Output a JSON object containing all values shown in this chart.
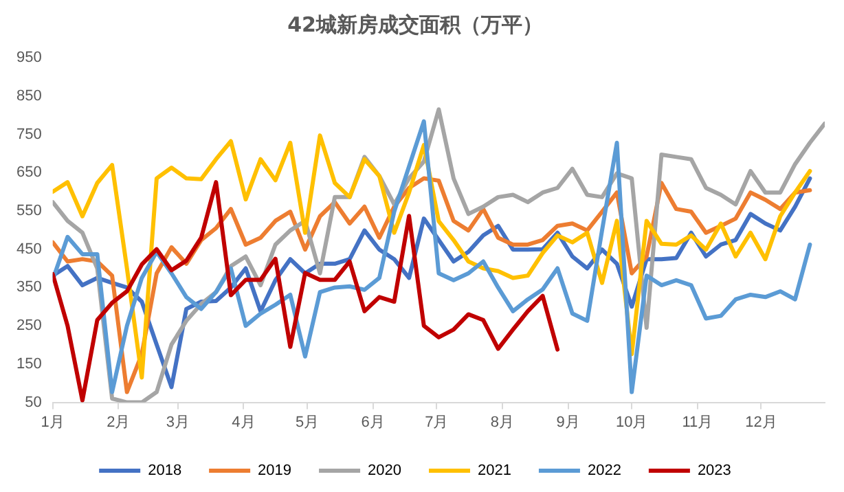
{
  "chart_data": {
    "type": "line",
    "title": "42城新房成交面积（万平）",
    "legend": "bottom",
    "grid": false,
    "marker": "none",
    "line_style": "solid",
    "x": [
      "--01-01",
      "--01-08",
      "--01-15",
      "--01-22",
      "--01-29",
      "--02-05",
      "--02-12",
      "--02-19",
      "--02-26",
      "--03-05",
      "--03-12",
      "--03-19",
      "--03-26",
      "--04-02",
      "--04-09",
      "--04-16",
      "--04-23",
      "--04-30",
      "--05-07",
      "--05-14",
      "--05-21",
      "--05-28",
      "--06-04",
      "--06-11",
      "--06-18",
      "--06-25",
      "--07-02",
      "--07-09",
      "--07-16",
      "--07-23",
      "--07-30",
      "--08-06",
      "--08-13",
      "--08-20",
      "--08-27",
      "--09-03",
      "--09-10",
      "--09-17",
      "--09-24",
      "--10-01",
      "--10-08",
      "--10-15",
      "--10-22",
      "--10-29",
      "--11-05",
      "--11-12",
      "--11-19",
      "--11-26",
      "--12-03",
      "--12-10",
      "--12-17",
      "--12-24",
      "--12-31"
    ],
    "xlim": [
      "--01-01",
      "--12-31"
    ],
    "xticks": [
      {
        "value": "--01-01",
        "label": "1月"
      },
      {
        "value": "--02-01",
        "label": "2月"
      },
      {
        "value": "--03-01",
        "label": "3月"
      },
      {
        "value": "--04-01",
        "label": "4月"
      },
      {
        "value": "--05-01",
        "label": "5月"
      },
      {
        "value": "--06-01",
        "label": "6月"
      },
      {
        "value": "--07-01",
        "label": "7月"
      },
      {
        "value": "--08-01",
        "label": "8月"
      },
      {
        "value": "--09-01",
        "label": "9月"
      },
      {
        "value": "--10-01",
        "label": "10月"
      },
      {
        "value": "--11-01",
        "label": "11月"
      },
      {
        "value": "--12-01",
        "label": "12月"
      }
    ],
    "ylim": [
      50,
      950
    ],
    "yticks": [
      50,
      150,
      250,
      350,
      450,
      550,
      650,
      750,
      850,
      950
    ],
    "series": [
      {
        "name": "2018",
        "color": "#4472c4",
        "values": [
          381,
          406,
          356,
          375,
          362,
          350,
          313,
          201,
          90,
          294,
          313,
          315,
          350,
          400,
          288,
          369,
          424,
          387,
          412,
          412,
          424,
          499,
          449,
          424,
          375,
          530,
          474,
          418,
          443,
          486,
          511,
          449,
          449,
          450,
          493,
          431,
          400,
          449,
          412,
          300,
          424,
          424,
          427,
          493,
          431,
          462,
          474,
          542,
          517,
          499,
          561,
          635,
          null
        ]
      },
      {
        "name": "2019",
        "color": "#ed7d31",
        "values": [
          468,
          418,
          424,
          418,
          381,
          77,
          176,
          387,
          455,
          412,
          474,
          505,
          555,
          462,
          480,
          524,
          548,
          449,
          536,
          573,
          517,
          561,
          480,
          561,
          610,
          635,
          629,
          524,
          499,
          555,
          480,
          462,
          462,
          474,
          511,
          517,
          499,
          548,
          598,
          387,
          431,
          623,
          555,
          548,
          493,
          511,
          530,
          598,
          579,
          555,
          598,
          604,
          null
        ]
      },
      {
        "name": "2020",
        "color": "#a5a5a5",
        "values": [
          573,
          524,
          493,
          400,
          60,
          50,
          50,
          77,
          201,
          263,
          307,
          338,
          406,
          431,
          356,
          462,
          499,
          524,
          387,
          586,
          586,
          691,
          641,
          567,
          635,
          679,
          815,
          635,
          542,
          561,
          586,
          592,
          573,
          598,
          610,
          660,
          592,
          586,
          648,
          635,
          245,
          697,
          691,
          685,
          610,
          592,
          567,
          654,
          598,
          598,
          672,
          728,
          778
        ]
      },
      {
        "name": "2021",
        "color": "#ffc000",
        "values": [
          600,
          625,
          536,
          623,
          670,
          400,
          115,
          635,
          663,
          635,
          633,
          685,
          732,
          580,
          685,
          630,
          728,
          493,
          747,
          623,
          586,
          685,
          641,
          493,
          598,
          722,
          523,
          474,
          418,
          400,
          393,
          375,
          381,
          440,
          486,
          468,
          493,
          362,
          524,
          176,
          524,
          464,
          462,
          486,
          449,
          517,
          431,
          493,
          424,
          536,
          598,
          654,
          null
        ]
      },
      {
        "name": "2022",
        "color": "#5b9bd5",
        "values": [
          370,
          482,
          437,
          437,
          77,
          250,
          375,
          443,
          387,
          325,
          294,
          338,
          400,
          250,
          282,
          305,
          331,
          170,
          338,
          350,
          353,
          344,
          375,
          548,
          666,
          784,
          387,
          369,
          387,
          418,
          350,
          288,
          319,
          345,
          400,
          282,
          263,
          499,
          728,
          77,
          381,
          356,
          369,
          356,
          269,
          276,
          319,
          331,
          325,
          340,
          319,
          462,
          null
        ]
      },
      {
        "name": "2023",
        "color": "#c00000",
        "values": [
          385,
          250,
          55,
          265,
          310,
          340,
          410,
          450,
          395,
          420,
          480,
          625,
          330,
          370,
          370,
          425,
          195,
          388,
          370,
          370,
          418,
          288,
          325,
          313,
          537,
          250,
          220,
          240,
          280,
          265,
          190,
          240,
          288,
          328,
          188,
          null,
          null,
          null,
          null,
          null,
          null,
          null,
          null,
          null,
          null,
          null,
          null,
          null,
          null,
          null,
          null,
          null,
          null
        ]
      }
    ]
  }
}
